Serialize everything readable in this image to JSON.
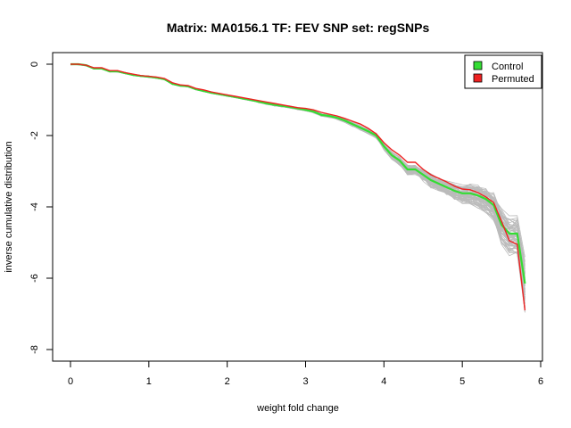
{
  "chart_data": {
    "type": "line",
    "title": "Matrix: MA0156.1 TF: FEV SNP set: regSNPs",
    "xlabel": "weight fold change",
    "ylabel": "inverse cumulative distribution",
    "xlim": [
      0,
      6
    ],
    "ylim": [
      -8,
      0
    ],
    "xticks": [
      0,
      1,
      2,
      3,
      4,
      5,
      6
    ],
    "yticks": [
      0,
      -2,
      -4,
      -6,
      -8
    ],
    "grid": false,
    "legend_position": "top-right",
    "colors": {
      "Control": "#33dd33",
      "Permuted": "#ee2222",
      "background_runs": "#bbbbbb"
    },
    "x": [
      0,
      0.1,
      0.2,
      0.3,
      0.4,
      0.5,
      0.6,
      0.7,
      0.8,
      0.9,
      1.0,
      1.1,
      1.2,
      1.3,
      1.4,
      1.5,
      1.6,
      1.7,
      1.8,
      1.9,
      2.0,
      2.1,
      2.2,
      2.3,
      2.4,
      2.5,
      2.6,
      2.7,
      2.8,
      2.9,
      3.0,
      3.1,
      3.2,
      3.3,
      3.4,
      3.5,
      3.6,
      3.7,
      3.8,
      3.9,
      4.0,
      4.1,
      4.2,
      4.3,
      4.4,
      4.5,
      4.6,
      4.7,
      4.8,
      4.9,
      5.0,
      5.1,
      5.2,
      5.3,
      5.4,
      5.5,
      5.6,
      5.7,
      5.8
    ],
    "series": [
      {
        "name": "Control",
        "values": [
          0,
          0,
          -0.03,
          -0.12,
          -0.12,
          -0.2,
          -0.2,
          -0.25,
          -0.3,
          -0.33,
          -0.35,
          -0.38,
          -0.42,
          -0.55,
          -0.6,
          -0.62,
          -0.7,
          -0.75,
          -0.8,
          -0.84,
          -0.88,
          -0.92,
          -0.96,
          -1.0,
          -1.05,
          -1.1,
          -1.14,
          -1.17,
          -1.2,
          -1.24,
          -1.28,
          -1.33,
          -1.42,
          -1.45,
          -1.5,
          -1.58,
          -1.68,
          -1.78,
          -1.88,
          -2.0,
          -2.3,
          -2.55,
          -2.7,
          -2.95,
          -2.95,
          -3.1,
          -3.25,
          -3.35,
          -3.45,
          -3.55,
          -3.62,
          -3.62,
          -3.68,
          -3.78,
          -3.95,
          -4.5,
          -4.75,
          -4.75,
          -6.15
        ]
      },
      {
        "name": "Permuted",
        "values": [
          0,
          0,
          -0.03,
          -0.1,
          -0.1,
          -0.18,
          -0.18,
          -0.24,
          -0.28,
          -0.32,
          -0.34,
          -0.36,
          -0.4,
          -0.52,
          -0.58,
          -0.6,
          -0.68,
          -0.72,
          -0.78,
          -0.82,
          -0.86,
          -0.9,
          -0.94,
          -0.98,
          -1.02,
          -1.06,
          -1.1,
          -1.14,
          -1.18,
          -1.22,
          -1.24,
          -1.28,
          -1.35,
          -1.4,
          -1.45,
          -1.52,
          -1.6,
          -1.68,
          -1.8,
          -1.95,
          -2.2,
          -2.4,
          -2.55,
          -2.75,
          -2.75,
          -2.95,
          -3.1,
          -3.2,
          -3.3,
          -3.42,
          -3.5,
          -3.52,
          -3.6,
          -3.72,
          -3.88,
          -4.4,
          -4.95,
          -5.05,
          -6.9
        ]
      }
    ]
  }
}
